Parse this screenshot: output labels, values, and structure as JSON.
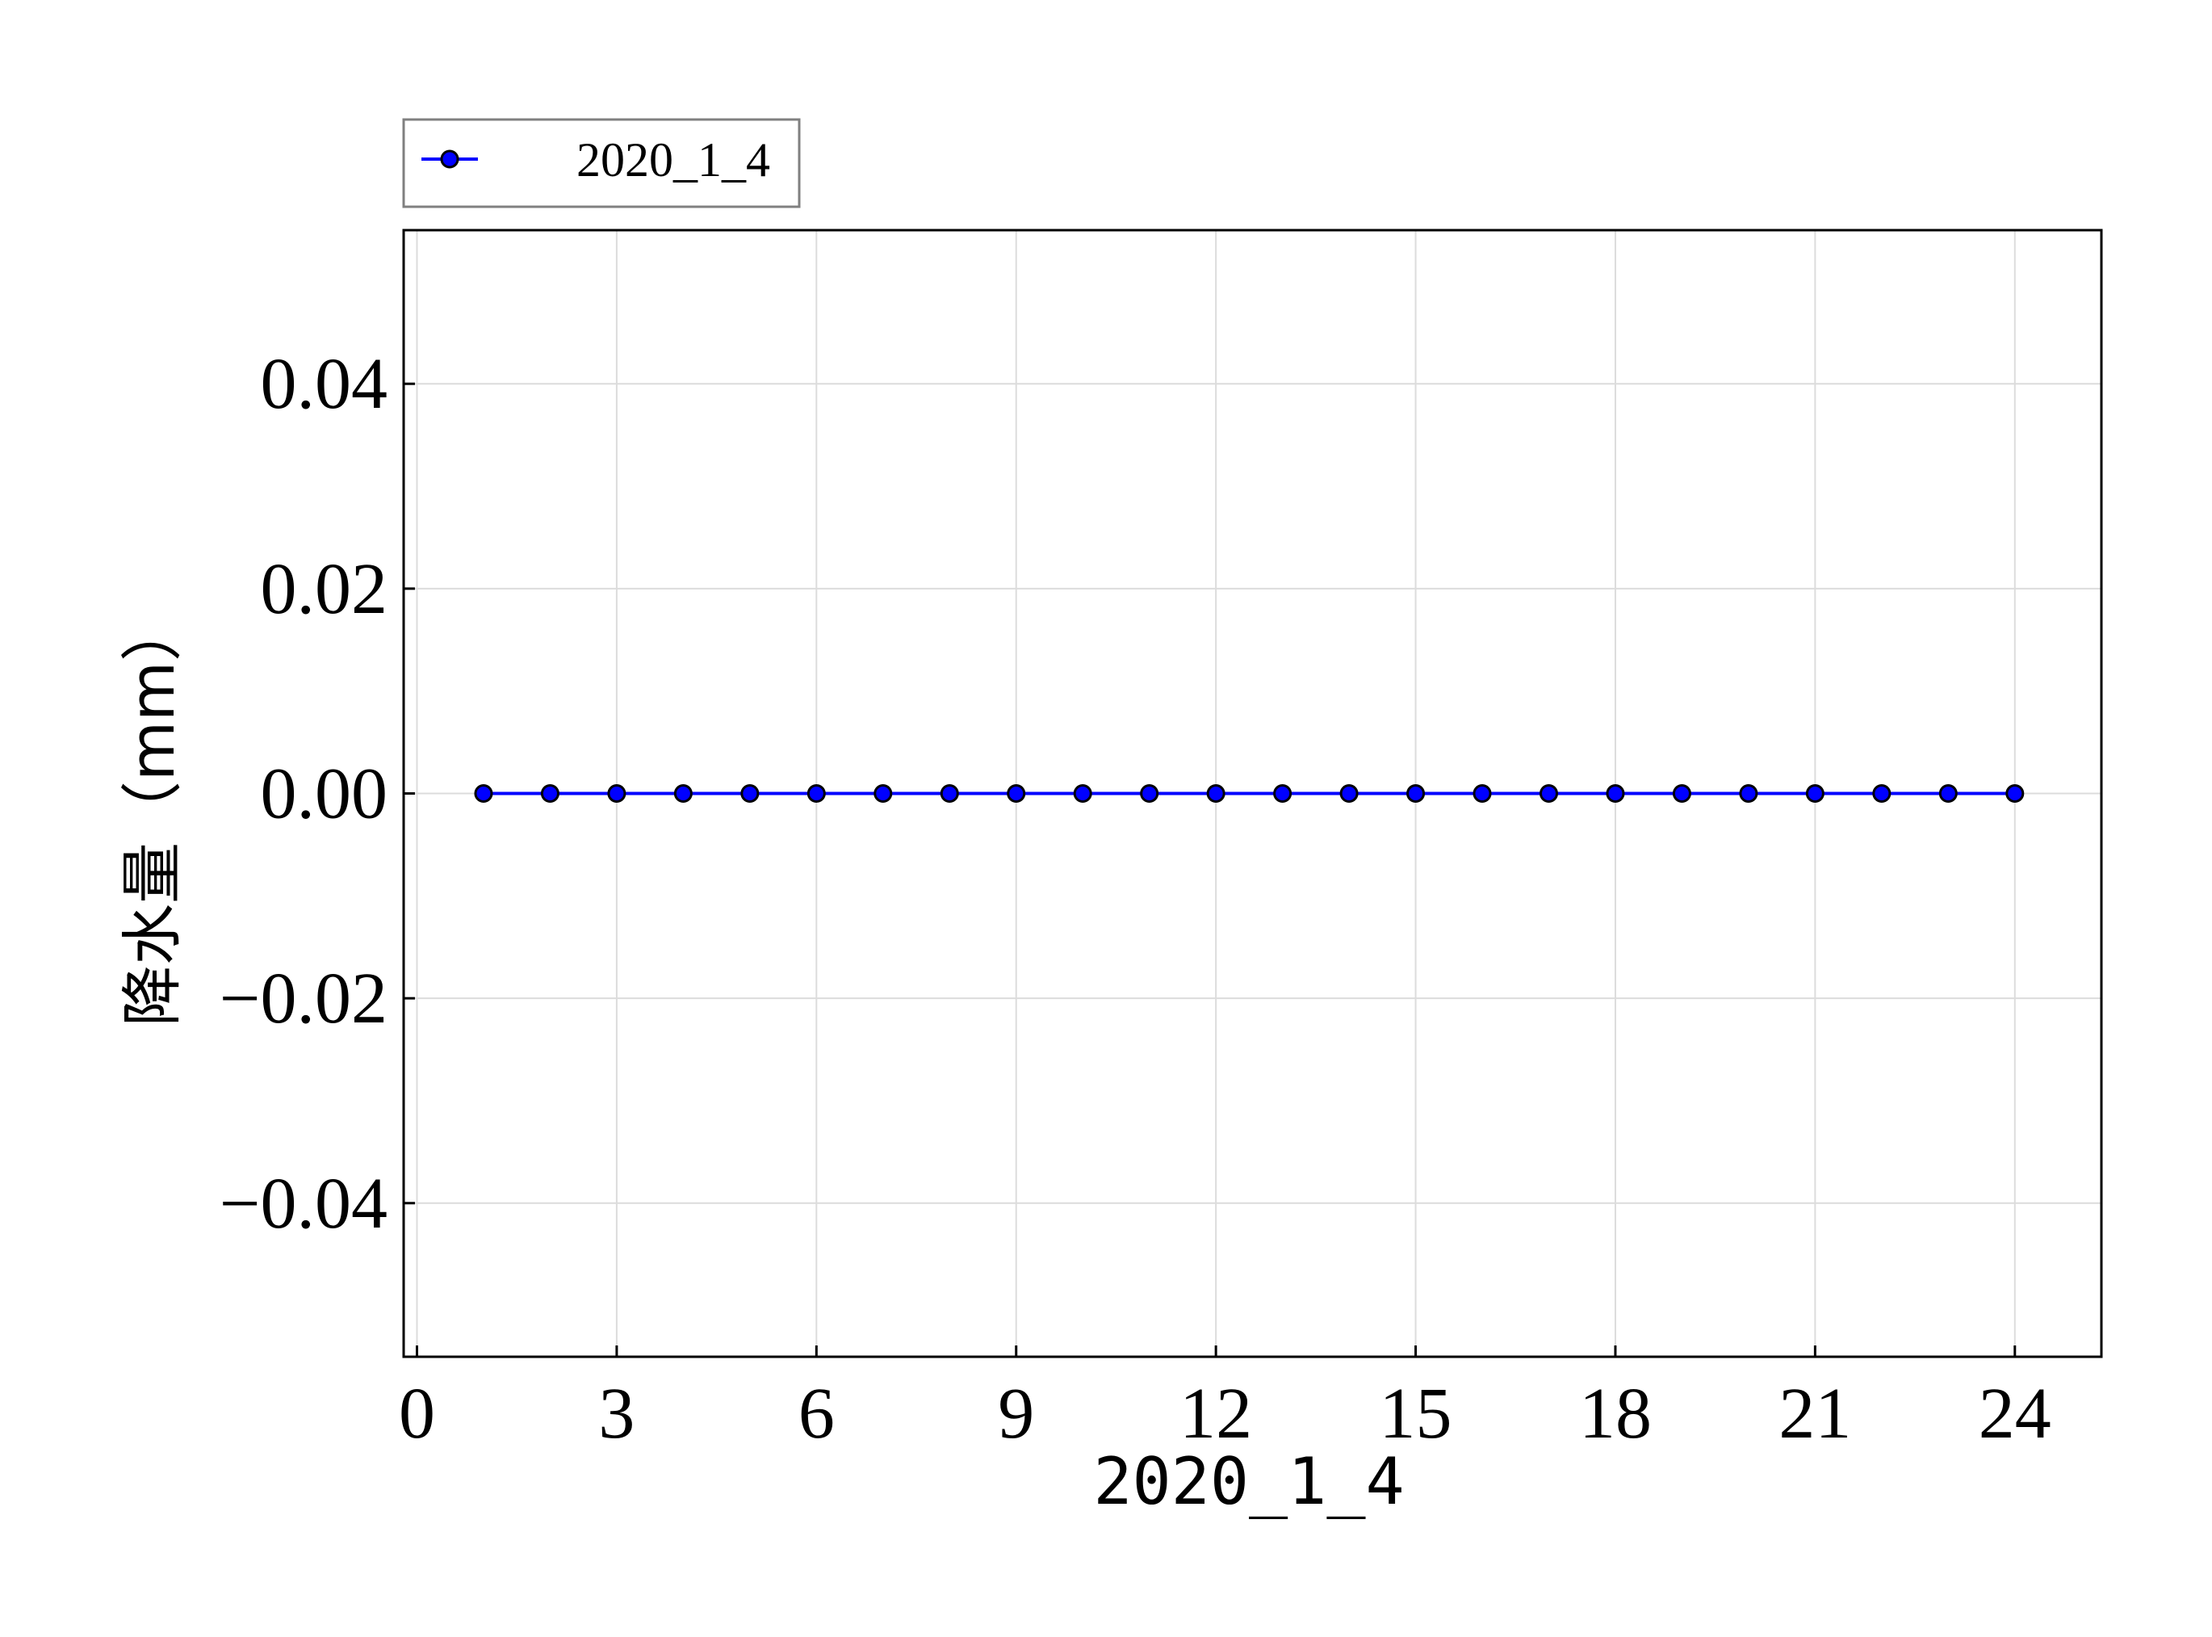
{
  "chart_data": {
    "type": "line",
    "title": "",
    "xlabel": "2020_1_4",
    "ylabel": "降水量（mm）",
    "xlim": [
      -0.2,
      25.3
    ],
    "ylim": [
      -0.055,
      0.055
    ],
    "xticks": [
      0,
      3,
      6,
      9,
      12,
      15,
      18,
      21,
      24
    ],
    "yticks": [
      -0.04,
      -0.02,
      0.0,
      0.02,
      0.04
    ],
    "ytick_labels": [
      "−0.04",
      "−0.02",
      "0.00",
      "0.02",
      "0.04"
    ],
    "grid": true,
    "legend_position": "top-left, above plot",
    "series": [
      {
        "name": "2020_1_4",
        "color": "#0000ff",
        "marker_color": "#0000ff",
        "marker_edge": "#000000",
        "x": [
          1,
          2,
          3,
          4,
          5,
          6,
          7,
          8,
          9,
          10,
          11,
          12,
          13,
          14,
          15,
          16,
          17,
          18,
          19,
          20,
          21,
          22,
          23,
          24
        ],
        "y": [
          0,
          0,
          0,
          0,
          0,
          0,
          0,
          0,
          0,
          0,
          0,
          0,
          0,
          0,
          0,
          0,
          0,
          0,
          0,
          0,
          0,
          0,
          0,
          0
        ]
      }
    ]
  }
}
